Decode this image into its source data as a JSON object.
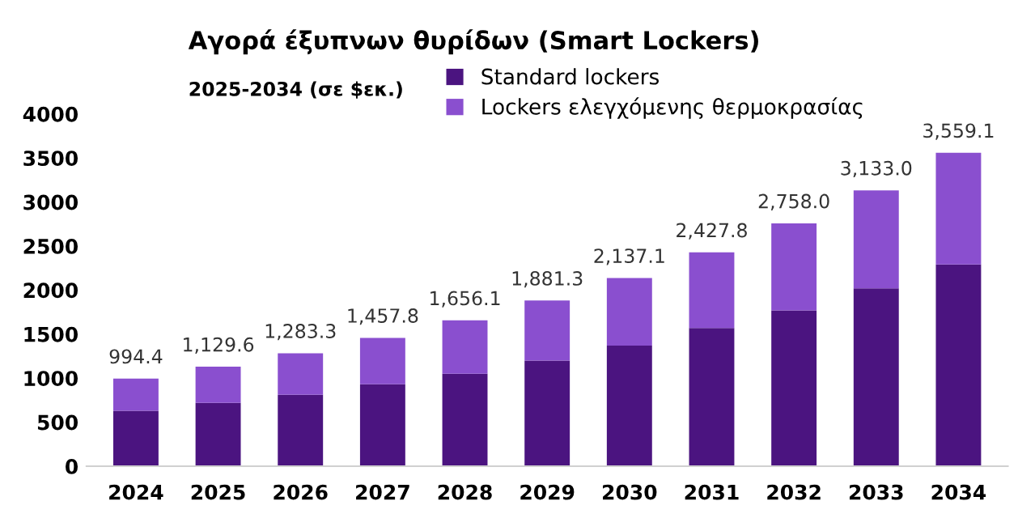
{
  "chart_data": {
    "type": "bar",
    "stacked": true,
    "title": "Αγορά έξυπνων θυρίδων (Smart Lockers)",
    "subtitle": "2025-2034 (σε $εκ.)",
    "categories": [
      "2024",
      "2025",
      "2026",
      "2027",
      "2028",
      "2029",
      "2030",
      "2031",
      "2032",
      "2033",
      "2034"
    ],
    "series": [
      {
        "name": "Standard lockers",
        "color": "#4b1480",
        "values": [
          630,
          720,
          810,
          930,
          1050,
          1200,
          1370,
          1570,
          1770,
          2020,
          2290
        ]
      },
      {
        "name": "Lockers ελεγχόμενης θερμοκρασίας",
        "color": "#8a4fcf",
        "values": [
          364.4,
          409.6,
          473.3,
          527.8,
          606.1,
          681.3,
          767.1,
          857.8,
          988.0,
          1113.0,
          1269.1
        ]
      }
    ],
    "totals": [
      "994.4",
      "1,129.6",
      "1,283.3",
      "1,457.8",
      "1,656.1",
      "1,881.3",
      "2,137.1",
      "2,427.8",
      "2,758.0",
      "3,133.0",
      "3,559.1"
    ],
    "ylim": [
      0,
      4000
    ],
    "yticks": [
      0,
      500,
      1000,
      1500,
      2000,
      2500,
      3000,
      3500,
      4000
    ],
    "grid": false,
    "legend": "top"
  }
}
